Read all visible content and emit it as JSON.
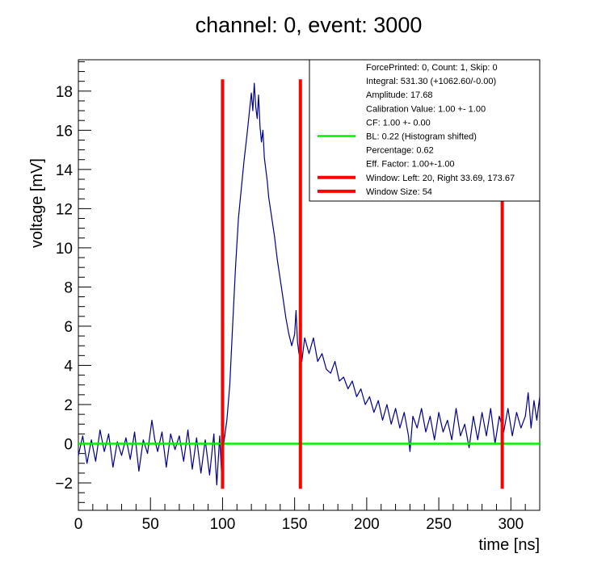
{
  "chart_data": {
    "type": "line",
    "title": "channel: 0, event: 3000",
    "xlabel": "time [ns]",
    "ylabel": "voltage [mV]",
    "xlim": [
      0,
      320
    ],
    "ylim": [
      -3.4,
      19.6
    ],
    "x_ticks": [
      0,
      50,
      100,
      150,
      200,
      250,
      300
    ],
    "y_ticks": [
      -2,
      0,
      2,
      4,
      6,
      8,
      10,
      12,
      14,
      16,
      18
    ],
    "x_tick_labels": [
      "0",
      "50",
      "100",
      "150",
      "200",
      "250",
      "300"
    ],
    "y_tick_labels": [
      "−2",
      "0",
      "2",
      "4",
      "6",
      "8",
      "10",
      "12",
      "14",
      "16",
      "18"
    ],
    "grid": false,
    "legend_position": "top-right",
    "colors": {
      "waveform": "#00008b",
      "baseline": "#00ee00",
      "window": "#ff0000"
    },
    "waveform_points": [
      [
        0,
        -0.6
      ],
      [
        3,
        0.4
      ],
      [
        6,
        -1.0
      ],
      [
        9,
        0.2
      ],
      [
        12,
        -0.9
      ],
      [
        15,
        0.7
      ],
      [
        18,
        -0.4
      ],
      [
        21,
        0.5
      ],
      [
        24,
        -1.2
      ],
      [
        27,
        0.1
      ],
      [
        30,
        -0.6
      ],
      [
        33,
        0.3
      ],
      [
        36,
        -0.8
      ],
      [
        39,
        0.6
      ],
      [
        42,
        -1.4
      ],
      [
        45,
        0.2
      ],
      [
        48,
        -0.5
      ],
      [
        51,
        1.2
      ],
      [
        53,
        0.2
      ],
      [
        55,
        -0.4
      ],
      [
        58,
        0.6
      ],
      [
        61,
        -1.2
      ],
      [
        64,
        0.5
      ],
      [
        67,
        -0.3
      ],
      [
        70,
        0.4
      ],
      [
        73,
        -0.9
      ],
      [
        76,
        0.7
      ],
      [
        79,
        -1.3
      ],
      [
        82,
        0.3
      ],
      [
        85,
        -1.5
      ],
      [
        88,
        0.2
      ],
      [
        91,
        -1.6
      ],
      [
        94,
        0.5
      ],
      [
        96,
        -2.1
      ],
      [
        98,
        0.4
      ],
      [
        99.5,
        -1.8
      ],
      [
        101,
        0.1
      ],
      [
        103,
        1.2
      ],
      [
        105,
        3.0
      ],
      [
        107,
        6.0
      ],
      [
        109,
        9.0
      ],
      [
        111,
        11.5
      ],
      [
        113,
        13.0
      ],
      [
        115,
        14.5
      ],
      [
        117,
        15.8
      ],
      [
        119,
        17.2
      ],
      [
        120,
        17.9
      ],
      [
        121,
        17.0
      ],
      [
        122,
        18.4
      ],
      [
        123,
        17.2
      ],
      [
        124,
        16.6
      ],
      [
        125,
        17.8
      ],
      [
        126,
        16.2
      ],
      [
        127,
        15.4
      ],
      [
        128,
        16.0
      ],
      [
        129,
        14.6
      ],
      [
        130,
        14.0
      ],
      [
        131,
        13.4
      ],
      [
        132,
        12.6
      ],
      [
        134,
        11.6
      ],
      [
        136,
        10.6
      ],
      [
        138,
        9.4
      ],
      [
        140,
        8.4
      ],
      [
        142,
        7.4
      ],
      [
        144,
        6.4
      ],
      [
        146,
        5.6
      ],
      [
        148,
        5.0
      ],
      [
        150,
        5.6
      ],
      [
        151,
        6.8
      ],
      [
        152,
        5.2
      ],
      [
        153,
        4.6
      ],
      [
        154,
        5.6
      ],
      [
        155,
        4.2
      ],
      [
        157,
        5.4
      ],
      [
        160,
        4.6
      ],
      [
        163,
        5.4
      ],
      [
        166,
        4.2
      ],
      [
        169,
        4.6
      ],
      [
        172,
        3.8
      ],
      [
        175,
        3.6
      ],
      [
        178,
        4.2
      ],
      [
        181,
        3.2
      ],
      [
        184,
        3.4
      ],
      [
        187,
        2.8
      ],
      [
        190,
        3.2
      ],
      [
        193,
        2.4
      ],
      [
        196,
        2.8
      ],
      [
        199,
        2.0
      ],
      [
        202,
        2.4
      ],
      [
        205,
        1.6
      ],
      [
        208,
        2.2
      ],
      [
        211,
        1.2
      ],
      [
        214,
        2.0
      ],
      [
        217,
        1.0
      ],
      [
        220,
        1.8
      ],
      [
        223,
        0.8
      ],
      [
        226,
        1.6
      ],
      [
        229,
        0.4
      ],
      [
        230,
        -0.4
      ],
      [
        232,
        1.4
      ],
      [
        235,
        0.8
      ],
      [
        238,
        1.8
      ],
      [
        241,
        0.6
      ],
      [
        244,
        1.4
      ],
      [
        247,
        0.2
      ],
      [
        250,
        1.6
      ],
      [
        253,
        0.6
      ],
      [
        256,
        1.2
      ],
      [
        259,
        0.2
      ],
      [
        262,
        1.8
      ],
      [
        265,
        0.4
      ],
      [
        268,
        1.0
      ],
      [
        271,
        -0.2
      ],
      [
        274,
        1.4
      ],
      [
        277,
        0.2
      ],
      [
        280,
        1.6
      ],
      [
        283,
        0.4
      ],
      [
        286,
        1.8
      ],
      [
        289,
        0.0
      ],
      [
        292,
        1.4
      ],
      [
        295,
        0.6
      ],
      [
        298,
        1.8
      ],
      [
        301,
        0.4
      ],
      [
        304,
        1.6
      ],
      [
        307,
        0.8
      ],
      [
        310,
        1.4
      ],
      [
        312,
        2.6
      ],
      [
        314,
        0.8
      ],
      [
        316,
        2.2
      ],
      [
        318,
        1.2
      ],
      [
        320,
        2.4
      ]
    ],
    "baseline": {
      "value": 0.0,
      "x_range": [
        0,
        320
      ]
    },
    "window_lines": [
      {
        "x": 100,
        "y_range": [
          -2.3,
          18.6
        ]
      },
      {
        "x": 154,
        "y_range": [
          -2.3,
          18.6
        ]
      },
      {
        "x": 294,
        "y_range": [
          -2.3,
          12.4
        ]
      }
    ]
  },
  "legend": {
    "rows": [
      {
        "text": "ForcePrinted: 0, Count: 1, Skip: 0",
        "marker": ""
      },
      {
        "text": "Integral: 531.30 (+1062.60/-0.00)",
        "marker": ""
      },
      {
        "text": "Amplitude: 17.68",
        "marker": ""
      },
      {
        "text": "Calibration Value: 1.00 +- 1.00",
        "marker": ""
      },
      {
        "text": "CF: 1.00 +- 0.00",
        "marker": ""
      },
      {
        "text": "BL: 0.22 (Histogram shifted)",
        "marker": "#00ee00"
      },
      {
        "text": "Percentage: 0.62",
        "marker": ""
      },
      {
        "text": "Eff. Factor: 1.00+-1.00",
        "marker": ""
      },
      {
        "text": "Window: Left: 20, Right 33.69, 173.67",
        "marker": "#ff0000"
      },
      {
        "text": "Window Size: 54",
        "marker": "#ff0000"
      }
    ]
  }
}
